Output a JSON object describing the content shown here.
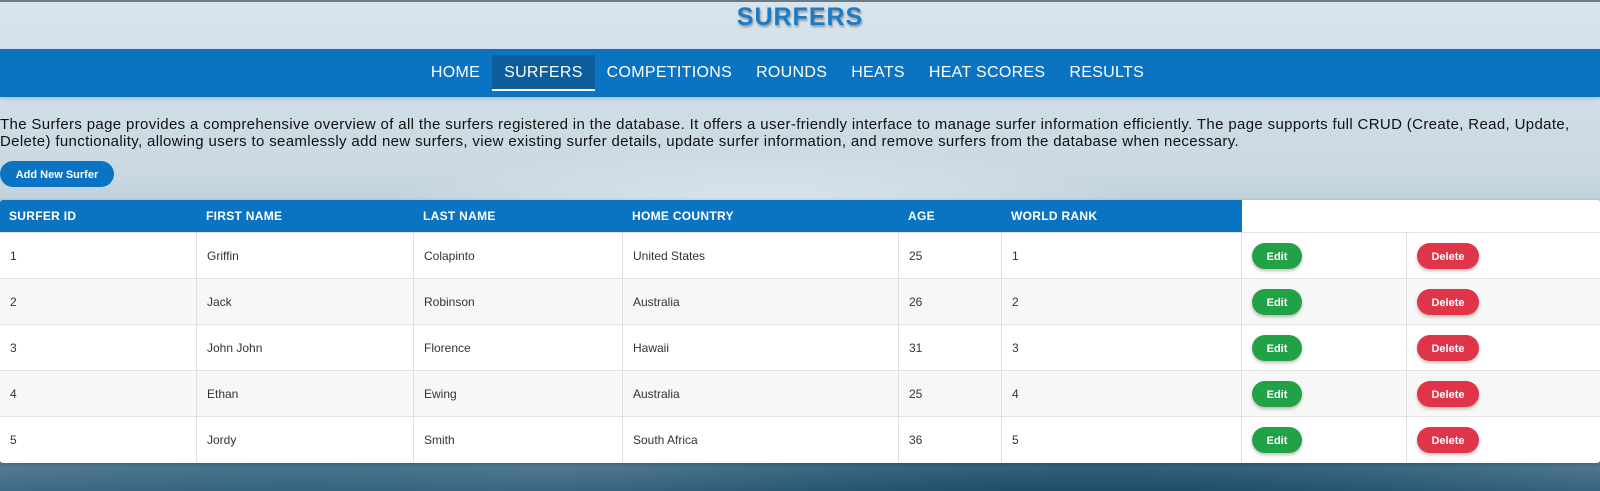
{
  "page": {
    "title": "SURFERS",
    "description": "The Surfers page provides a comprehensive overview of all the surfers registered in the database. It offers a user-friendly interface to manage surfer information efficiently. The page supports full CRUD (Create, Read, Update, Delete) functionality, allowing users to seamlessly add new surfers, view existing surfer details, update surfer information, and remove surfers from the database when necessary."
  },
  "nav": {
    "items": [
      {
        "label": "HOME",
        "active": false
      },
      {
        "label": "SURFERS",
        "active": true
      },
      {
        "label": "COMPETITIONS",
        "active": false
      },
      {
        "label": "ROUNDS",
        "active": false
      },
      {
        "label": "HEATS",
        "active": false
      },
      {
        "label": "HEAT SCORES",
        "active": false
      },
      {
        "label": "RESULTS",
        "active": false
      }
    ]
  },
  "actions": {
    "add_label": "Add New Surfer",
    "edit_label": "Edit",
    "delete_label": "Delete"
  },
  "colors": {
    "primary": "#0a74c2",
    "edit": "#22a246",
    "delete": "#e03548",
    "title": "#1a7cc8"
  },
  "table": {
    "headers": [
      "SURFER ID",
      "FIRST NAME",
      "LAST NAME",
      "HOME COUNTRY",
      "AGE",
      "WORLD RANK"
    ],
    "rows": [
      [
        "1",
        "Griffin",
        "Colapinto",
        "United States",
        "25",
        "1"
      ],
      [
        "2",
        "Jack",
        "Robinson",
        "Australia",
        "26",
        "2"
      ],
      [
        "3",
        "John John",
        "Florence",
        "Hawaii",
        "31",
        "3"
      ],
      [
        "4",
        "Ethan",
        "Ewing",
        "Australia",
        "25",
        "4"
      ],
      [
        "5",
        "Jordy",
        "Smith",
        "South Africa",
        "36",
        "5"
      ]
    ]
  }
}
